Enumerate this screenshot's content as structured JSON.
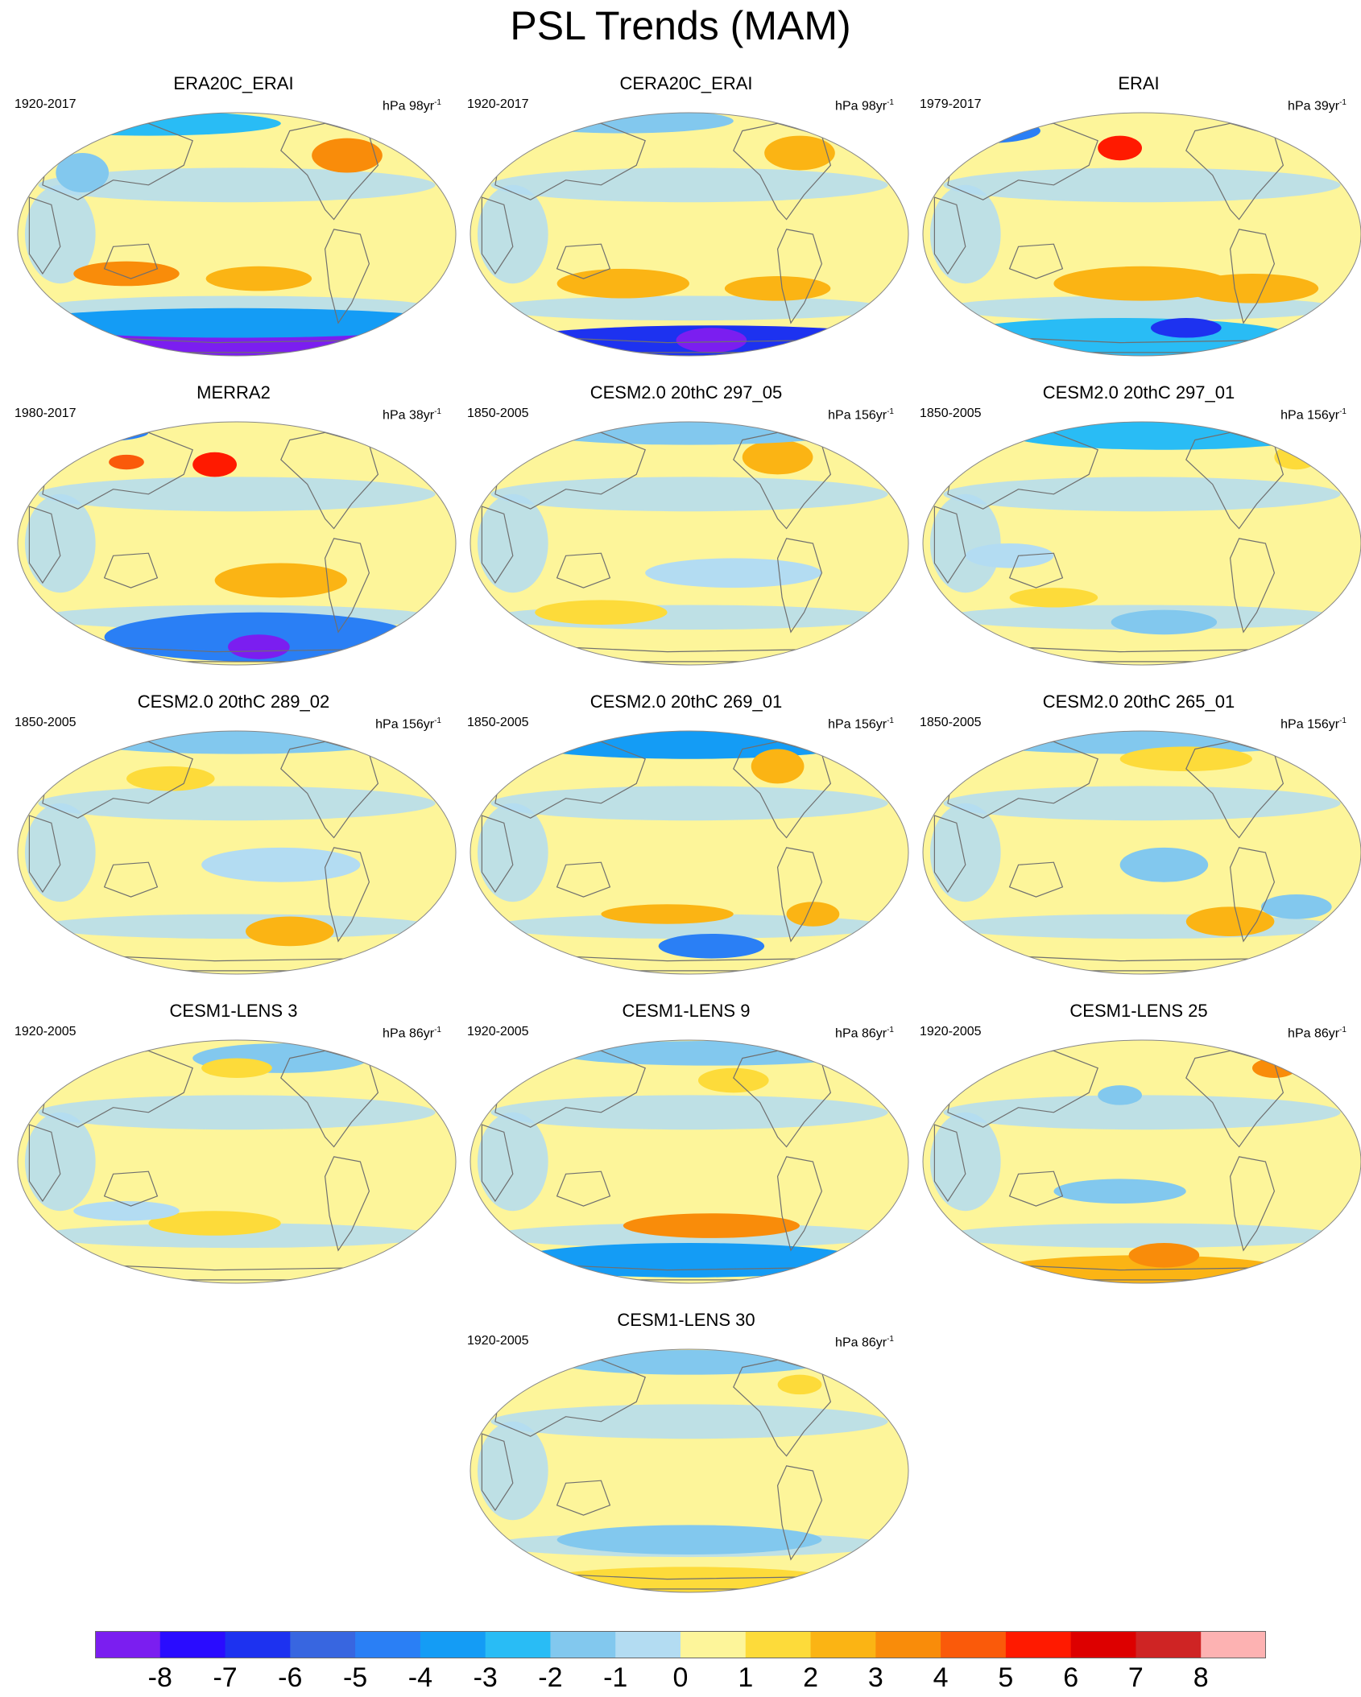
{
  "title": "PSL Trends (MAM)",
  "colors": {
    "levels": [
      "#7b1ef0",
      "#2a0cff",
      "#1d32f0",
      "#3866e0",
      "#2a7ff5",
      "#149cf5",
      "#29bcf5",
      "#82c8ee",
      "#b3dcf2",
      "#fdf59a",
      "#fddb3a",
      "#fbb414",
      "#f98c0a",
      "#fa5a0a",
      "#ff1a00",
      "#dd0000",
      "#cf2424",
      "#fdb2b2"
    ],
    "coastline": "#6f6f6f"
  },
  "colorbar": {
    "labels": [
      "-8",
      "-7",
      "-6",
      "-5",
      "-4",
      "-3",
      "-2",
      "-1",
      "0",
      "1",
      "2",
      "3",
      "4",
      "5",
      "6",
      "7",
      "8"
    ]
  },
  "panels": [
    {
      "title": "ERA20C_ERAI",
      "period": "1920-2017",
      "units_base": "hPa 98yr",
      "units_exp": "-1"
    },
    {
      "title": "CERA20C_ERAI",
      "period": "1920-2017",
      "units_base": "hPa 98yr",
      "units_exp": "-1"
    },
    {
      "title": "ERAI",
      "period": "1979-2017",
      "units_base": "hPa 39yr",
      "units_exp": "-1"
    },
    {
      "title": "MERRA2",
      "period": "1980-2017",
      "units_base": "hPa 38yr",
      "units_exp": "-1"
    },
    {
      "title": "CESM2.0 20thC 297_05",
      "period": "1850-2005",
      "units_base": "hPa 156yr",
      "units_exp": "-1"
    },
    {
      "title": "CESM2.0 20thC 297_01",
      "period": "1850-2005",
      "units_base": "hPa 156yr",
      "units_exp": "-1"
    },
    {
      "title": "CESM2.0 20thC 289_02",
      "period": "1850-2005",
      "units_base": "hPa 156yr",
      "units_exp": "-1"
    },
    {
      "title": "CESM2.0 20thC 269_01",
      "period": "1850-2005",
      "units_base": "hPa 156yr",
      "units_exp": "-1"
    },
    {
      "title": "CESM2.0 20thC 265_01",
      "period": "1850-2005",
      "units_base": "hPa 156yr",
      "units_exp": "-1"
    },
    {
      "title": "CESM1-LENS 3",
      "period": "1920-2005",
      "units_base": "hPa 86yr",
      "units_exp": "-1"
    },
    {
      "title": "CESM1-LENS 9",
      "period": "1920-2005",
      "units_base": "hPa 86yr",
      "units_exp": "-1"
    },
    {
      "title": "CESM1-LENS 25",
      "period": "1920-2005",
      "units_base": "hPa 86yr",
      "units_exp": "-1"
    },
    {
      "title": "CESM1-LENS 30",
      "period": "1920-2005",
      "units_base": "hPa 86yr",
      "units_exp": "-1"
    }
  ]
}
